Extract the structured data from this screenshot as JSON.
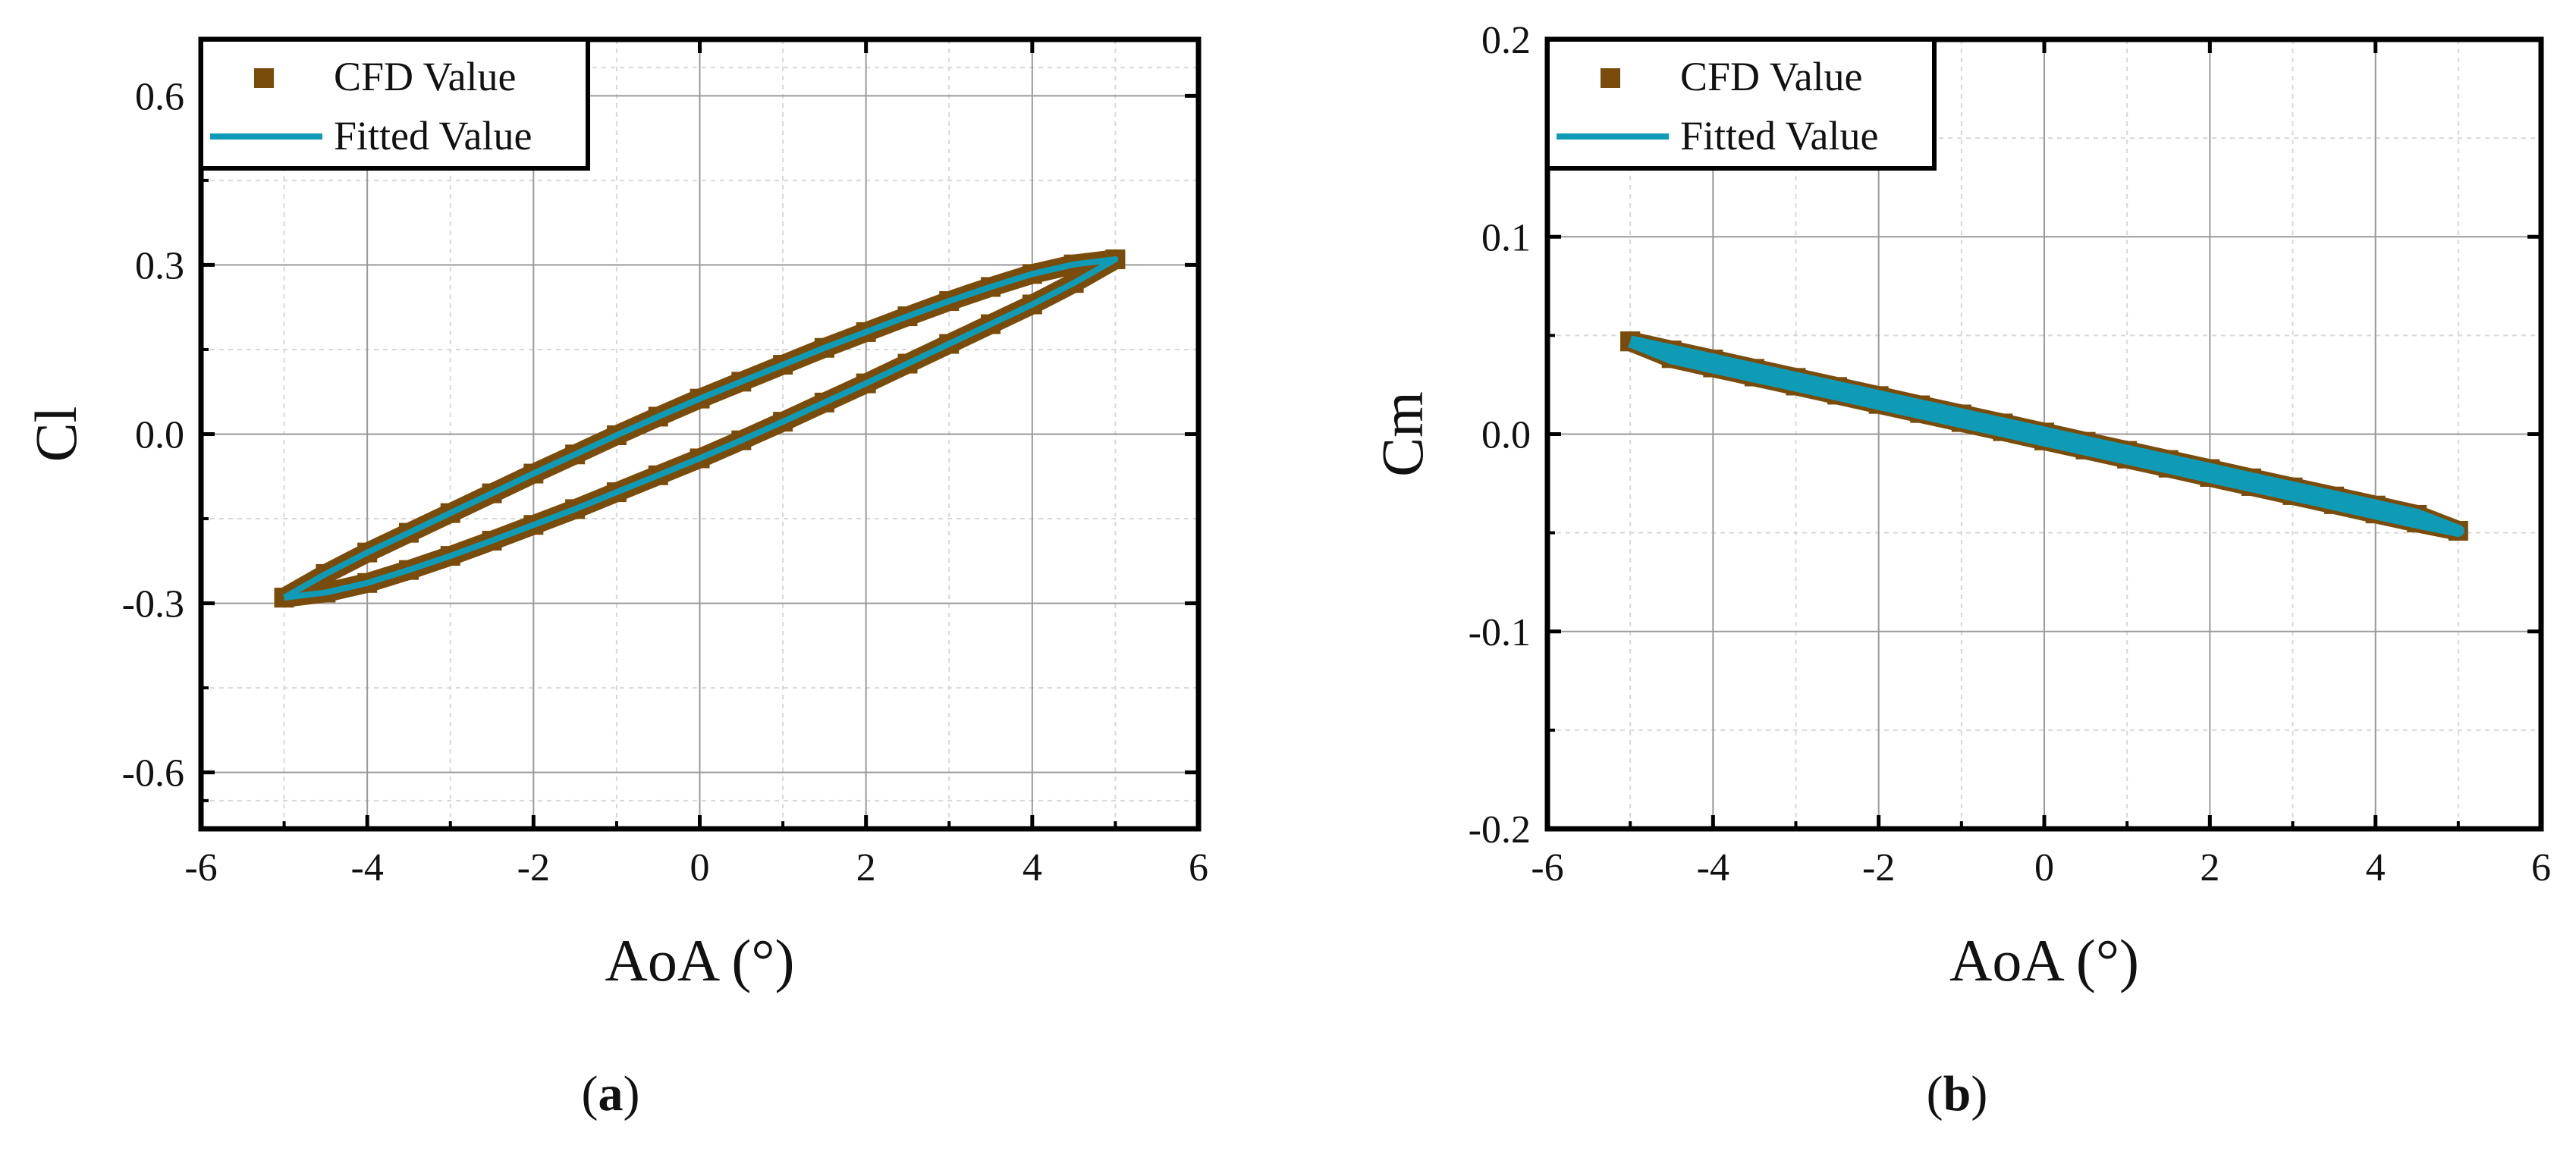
{
  "colors": {
    "cfd": "#7a4c0b",
    "fitted": "#0f9bb5",
    "axis": "#000000",
    "grid_major": "#9a9a9a",
    "grid_minor": "#d8d8d8"
  },
  "captions": [
    {
      "label": "a",
      "open": "(",
      "close": ")"
    },
    {
      "label": "b",
      "open": "(",
      "close": ")"
    }
  ],
  "chart_data": [
    {
      "type": "scatter",
      "id": "a",
      "title": "",
      "xlabel": "AoA (°)",
      "ylabel": "Cl",
      "xlim": [
        -6,
        6
      ],
      "ylim": [
        -0.7,
        0.7
      ],
      "xticks": [
        -6,
        -4,
        -2,
        0,
        2,
        4,
        6
      ],
      "xtick_labels": [
        "-6",
        "-4",
        "-2",
        "0",
        "2",
        "4",
        "6"
      ],
      "yticks": [
        -0.6,
        -0.3,
        0.0,
        0.3,
        0.6
      ],
      "ytick_labels": [
        "-0.6",
        "-0.3",
        "0.0",
        "0.3",
        "0.6"
      ],
      "grid": true,
      "legend": {
        "position": "top-left",
        "entries": [
          "CFD Value",
          "Fitted Value"
        ]
      },
      "series": [
        {
          "name": "CFD Value",
          "marker": "square",
          "x": [
            -5.0,
            -4.5,
            -4.0,
            -3.5,
            -3.0,
            -2.5,
            -2.0,
            -1.5,
            -1.0,
            -0.5,
            0.0,
            0.5,
            1.0,
            1.5,
            2.0,
            2.5,
            3.0,
            3.5,
            4.0,
            4.5,
            5.0,
            4.5,
            4.0,
            3.5,
            3.0,
            2.5,
            2.0,
            1.5,
            1.0,
            0.5,
            0.0,
            -0.5,
            -1.0,
            -1.5,
            -2.0,
            -2.5,
            -3.0,
            -3.5,
            -4.0,
            -4.5,
            -5.0
          ],
          "y": [
            -0.29,
            -0.248,
            -0.21,
            -0.175,
            -0.14,
            -0.105,
            -0.07,
            -0.036,
            -0.002,
            0.031,
            0.063,
            0.093,
            0.123,
            0.153,
            0.181,
            0.209,
            0.236,
            0.261,
            0.284,
            0.301,
            0.31,
            0.268,
            0.23,
            0.195,
            0.16,
            0.125,
            0.09,
            0.056,
            0.022,
            -0.011,
            -0.043,
            -0.073,
            -0.103,
            -0.133,
            -0.161,
            -0.189,
            -0.216,
            -0.241,
            -0.264,
            -0.281,
            -0.29
          ]
        },
        {
          "name": "Fitted Value",
          "marker": "line",
          "x": [
            -5.0,
            -4.5,
            -4.0,
            -3.5,
            -3.0,
            -2.5,
            -2.0,
            -1.5,
            -1.0,
            -0.5,
            0.0,
            0.5,
            1.0,
            1.5,
            2.0,
            2.5,
            3.0,
            3.5,
            4.0,
            4.5,
            5.0,
            4.5,
            4.0,
            3.5,
            3.0,
            2.5,
            2.0,
            1.5,
            1.0,
            0.5,
            0.0,
            -0.5,
            -1.0,
            -1.5,
            -2.0,
            -2.5,
            -3.0,
            -3.5,
            -4.0,
            -4.5,
            -5.0
          ],
          "y": [
            -0.29,
            -0.248,
            -0.21,
            -0.175,
            -0.14,
            -0.105,
            -0.07,
            -0.036,
            -0.002,
            0.031,
            0.063,
            0.093,
            0.123,
            0.153,
            0.181,
            0.209,
            0.236,
            0.261,
            0.284,
            0.301,
            0.31,
            0.268,
            0.23,
            0.195,
            0.16,
            0.125,
            0.09,
            0.056,
            0.022,
            -0.011,
            -0.043,
            -0.073,
            -0.103,
            -0.133,
            -0.161,
            -0.189,
            -0.216,
            -0.241,
            -0.264,
            -0.281,
            -0.29
          ]
        }
      ]
    },
    {
      "type": "scatter",
      "id": "b",
      "title": "",
      "xlabel": "AoA (°)",
      "ylabel": "Cm",
      "xlim": [
        -6,
        6
      ],
      "ylim": [
        -0.2,
        0.2
      ],
      "xticks": [
        -6,
        -4,
        -2,
        0,
        2,
        4,
        6
      ],
      "xtick_labels": [
        "-6",
        "-4",
        "-2",
        "0",
        "2",
        "4",
        "6"
      ],
      "yticks": [
        -0.2,
        -0.1,
        0.0,
        0.1,
        0.2
      ],
      "ytick_labels": [
        "-0.2",
        "-0.1",
        "0.0",
        "0.1",
        "0.2"
      ],
      "grid": true,
      "legend": {
        "position": "top-left",
        "entries": [
          "CFD Value",
          "Fitted Value"
        ]
      },
      "series": [
        {
          "name": "CFD Value",
          "marker": "square",
          "x": [
            -5.0,
            -4.5,
            -4.0,
            -3.5,
            -3.0,
            -2.5,
            -2.0,
            -1.5,
            -1.0,
            -0.5,
            0.0,
            0.5,
            1.0,
            1.5,
            2.0,
            2.5,
            3.0,
            3.5,
            4.0,
            4.5,
            5.0,
            4.5,
            4.0,
            3.5,
            3.0,
            2.5,
            2.0,
            1.5,
            1.0,
            0.5,
            0.0,
            -0.5,
            -1.0,
            -1.5,
            -2.0,
            -2.5,
            -3.0,
            -3.5,
            -4.0,
            -4.5,
            -5.0
          ],
          "y": [
            0.047,
            0.0424,
            0.0378,
            0.0331,
            0.0285,
            0.0239,
            0.0193,
            0.0146,
            0.01,
            0.0054,
            0.0008,
            -0.0039,
            -0.0085,
            -0.0131,
            -0.0177,
            -0.0224,
            -0.027,
            -0.0316,
            -0.0362,
            -0.0409,
            -0.049,
            -0.0448,
            -0.0402,
            -0.0355,
            -0.0309,
            -0.0263,
            -0.0217,
            -0.017,
            -0.0124,
            -0.0078,
            -0.0032,
            0.0015,
            0.0061,
            0.0107,
            0.0153,
            0.02,
            0.0246,
            0.0292,
            0.0338,
            0.0385,
            0.047
          ]
        },
        {
          "name": "Fitted Value",
          "marker": "line",
          "x": [
            -5.0,
            -4.5,
            -4.0,
            -3.5,
            -3.0,
            -2.5,
            -2.0,
            -1.5,
            -1.0,
            -0.5,
            0.0,
            0.5,
            1.0,
            1.5,
            2.0,
            2.5,
            3.0,
            3.5,
            4.0,
            4.5,
            5.0,
            4.5,
            4.0,
            3.5,
            3.0,
            2.5,
            2.0,
            1.5,
            1.0,
            0.5,
            0.0,
            -0.5,
            -1.0,
            -1.5,
            -2.0,
            -2.5,
            -3.0,
            -3.5,
            -4.0,
            -4.5,
            -5.0
          ],
          "y": [
            0.047,
            0.0424,
            0.0378,
            0.0331,
            0.0285,
            0.0239,
            0.0193,
            0.0146,
            0.01,
            0.0054,
            0.0008,
            -0.0039,
            -0.0085,
            -0.0131,
            -0.0177,
            -0.0224,
            -0.027,
            -0.0316,
            -0.0362,
            -0.0409,
            -0.049,
            -0.0448,
            -0.0402,
            -0.0355,
            -0.0309,
            -0.0263,
            -0.0217,
            -0.017,
            -0.0124,
            -0.0078,
            -0.0032,
            0.0015,
            0.0061,
            0.0107,
            0.0153,
            0.02,
            0.0246,
            0.0292,
            0.0338,
            0.0385,
            0.047
          ]
        }
      ]
    }
  ]
}
